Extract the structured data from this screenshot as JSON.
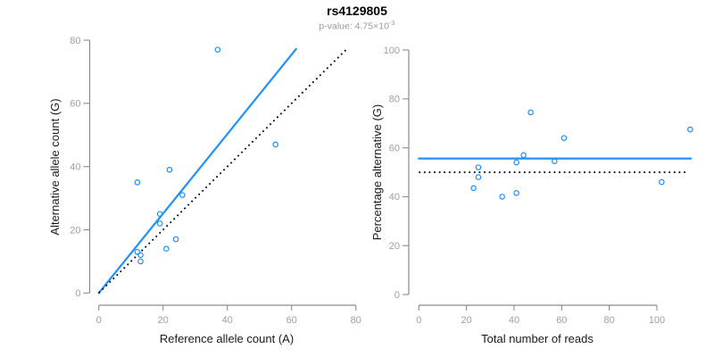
{
  "title": "rs4129805",
  "subtitle": {
    "base": "p-value: 4.75×10",
    "exponent": "-3"
  },
  "colors": {
    "accent_blue": "#1E90FF",
    "dotted_black": "#000000",
    "axis_gray": "#8c8c8c",
    "tick_label_gray": "#9e9e9e",
    "subtitle_gray": "#999999",
    "title_black": "#000000"
  },
  "chart_data": [
    {
      "type": "scatter",
      "panel": "left",
      "xlabel": "Reference allele count (A)",
      "ylabel": "Alternative allele count (G)",
      "xlim": [
        0,
        80
      ],
      "ylim": [
        0,
        80
      ],
      "xticks": [
        0,
        20,
        40,
        60,
        80
      ],
      "yticks": [
        0,
        20,
        40,
        60,
        80
      ],
      "grid": false,
      "points": [
        [
          12,
          35
        ],
        [
          12,
          13
        ],
        [
          13,
          12
        ],
        [
          13,
          10
        ],
        [
          19,
          25
        ],
        [
          19,
          22
        ],
        [
          21,
          14
        ],
        [
          24,
          17
        ],
        [
          22,
          39
        ],
        [
          26,
          31
        ],
        [
          37,
          77
        ],
        [
          55,
          47
        ]
      ],
      "lines": [
        {
          "name": "fitted-ratio-line",
          "style": "solid",
          "color_key": "accent_blue",
          "from": [
            0,
            0
          ],
          "to": [
            61.4,
            77.2
          ]
        },
        {
          "name": "identity-line",
          "style": "dotted",
          "color_key": "dotted_black",
          "from": [
            0,
            0
          ],
          "to": [
            77,
            77
          ]
        }
      ]
    },
    {
      "type": "scatter",
      "panel": "right",
      "xlabel": "Total number of reads",
      "ylabel": "Percentage alternative (G)",
      "xlim": [
        0,
        114
      ],
      "ylim": [
        0,
        100
      ],
      "xticks": [
        0,
        20,
        40,
        60,
        80,
        100
      ],
      "yticks": [
        0,
        20,
        40,
        60,
        80,
        100
      ],
      "grid": false,
      "points": [
        [
          47,
          74.5
        ],
        [
          25,
          52
        ],
        [
          25,
          48
        ],
        [
          23,
          43.5
        ],
        [
          44,
          57
        ],
        [
          41,
          54
        ],
        [
          35,
          40
        ],
        [
          41,
          41.5
        ],
        [
          61,
          64
        ],
        [
          57,
          54.5
        ],
        [
          114,
          67.5
        ],
        [
          102,
          46
        ]
      ],
      "lines": [
        {
          "name": "mean-percentage-line",
          "style": "solid",
          "color_key": "accent_blue",
          "from": [
            0,
            55.6
          ],
          "to": [
            114.3,
            55.6
          ]
        },
        {
          "name": "fifty-percent-line",
          "style": "dotted",
          "color_key": "dotted_black",
          "from": [
            0,
            50
          ],
          "to": [
            112,
            50
          ]
        }
      ]
    }
  ]
}
